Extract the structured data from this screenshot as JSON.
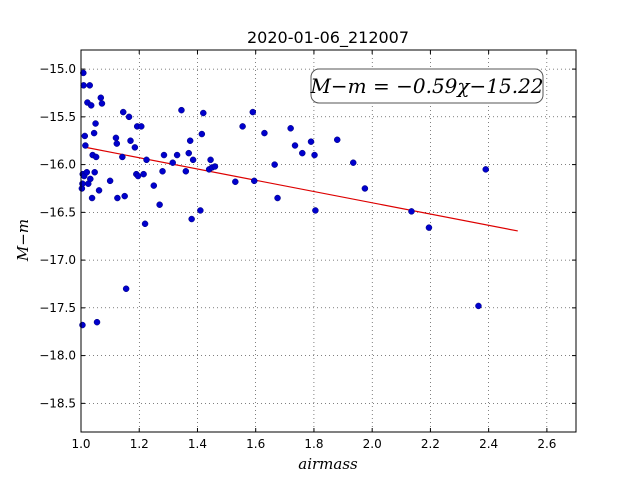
{
  "chart_data": {
    "type": "scatter",
    "title": "2020-01-06_212007",
    "xlabel": "airmass",
    "ylabel": "M−m",
    "xlim": [
      1.0,
      2.7
    ],
    "ylim": [
      -18.8,
      -14.8
    ],
    "y_inverted": true,
    "grid": true,
    "x_ticks": [
      "1.0",
      "1.2",
      "1.4",
      "1.6",
      "1.8",
      "2.0",
      "2.2",
      "2.4",
      "2.6"
    ],
    "y_ticks": [
      "−15.0",
      "−15.5",
      "−16.0",
      "−16.5",
      "−17.0",
      "−17.5",
      "−18.0",
      "−18.5"
    ],
    "point_color": "#0000cc",
    "fit_color": "#dd0000",
    "annotation": "M−m = −0.59χ−15.22",
    "fit": {
      "slope": -0.59,
      "intercept": -15.22,
      "x_range": [
        1.01,
        2.5
      ]
    },
    "points": [
      [
        1.003,
        -16.25
      ],
      [
        1.005,
        -17.68
      ],
      [
        1.005,
        -16.2
      ],
      [
        1.006,
        -16.1
      ],
      [
        1.008,
        -15.04
      ],
      [
        1.009,
        -15.17
      ],
      [
        1.011,
        -16.12
      ],
      [
        1.013,
        -15.7
      ],
      [
        1.015,
        -15.8
      ],
      [
        1.02,
        -16.08
      ],
      [
        1.022,
        -15.35
      ],
      [
        1.025,
        -16.2
      ],
      [
        1.03,
        -15.17
      ],
      [
        1.032,
        -16.15
      ],
      [
        1.035,
        -15.38
      ],
      [
        1.038,
        -16.35
      ],
      [
        1.04,
        -15.9
      ],
      [
        1.045,
        -15.67
      ],
      [
        1.047,
        -16.08
      ],
      [
        1.05,
        -15.57
      ],
      [
        1.052,
        -15.92
      ],
      [
        1.055,
        -17.65
      ],
      [
        1.062,
        -16.27
      ],
      [
        1.068,
        -15.3
      ],
      [
        1.072,
        -15.36
      ],
      [
        1.1,
        -16.17
      ],
      [
        1.12,
        -15.72
      ],
      [
        1.123,
        -15.78
      ],
      [
        1.125,
        -16.35
      ],
      [
        1.142,
        -15.92
      ],
      [
        1.145,
        -15.45
      ],
      [
        1.15,
        -16.33
      ],
      [
        1.155,
        -17.3
      ],
      [
        1.165,
        -15.5
      ],
      [
        1.17,
        -15.75
      ],
      [
        1.185,
        -15.82
      ],
      [
        1.19,
        -16.1
      ],
      [
        1.193,
        -15.6
      ],
      [
        1.196,
        -16.12
      ],
      [
        1.207,
        -15.6
      ],
      [
        1.215,
        -16.1
      ],
      [
        1.22,
        -16.62
      ],
      [
        1.225,
        -15.95
      ],
      [
        1.25,
        -16.22
      ],
      [
        1.27,
        -16.42
      ],
      [
        1.28,
        -16.07
      ],
      [
        1.285,
        -15.9
      ],
      [
        1.315,
        -15.98
      ],
      [
        1.33,
        -15.9
      ],
      [
        1.345,
        -15.43
      ],
      [
        1.36,
        -16.07
      ],
      [
        1.37,
        -15.88
      ],
      [
        1.375,
        -15.75
      ],
      [
        1.38,
        -16.57
      ],
      [
        1.385,
        -15.95
      ],
      [
        1.41,
        -16.48
      ],
      [
        1.415,
        -15.68
      ],
      [
        1.42,
        -15.46
      ],
      [
        1.44,
        -16.05
      ],
      [
        1.445,
        -15.95
      ],
      [
        1.45,
        -16.03
      ],
      [
        1.46,
        -16.02
      ],
      [
        1.53,
        -16.18
      ],
      [
        1.555,
        -15.6
      ],
      [
        1.59,
        -15.45
      ],
      [
        1.595,
        -16.17
      ],
      [
        1.63,
        -15.67
      ],
      [
        1.665,
        -16.0
      ],
      [
        1.675,
        -16.35
      ],
      [
        1.72,
        -15.62
      ],
      [
        1.735,
        -15.8
      ],
      [
        1.76,
        -15.88
      ],
      [
        1.79,
        -15.76
      ],
      [
        1.802,
        -15.9
      ],
      [
        1.805,
        -16.48
      ],
      [
        1.88,
        -15.74
      ],
      [
        1.935,
        -15.98
      ],
      [
        1.975,
        -16.25
      ],
      [
        2.135,
        -16.49
      ],
      [
        2.195,
        -16.66
      ],
      [
        2.365,
        -17.48
      ],
      [
        2.39,
        -16.05
      ]
    ]
  }
}
